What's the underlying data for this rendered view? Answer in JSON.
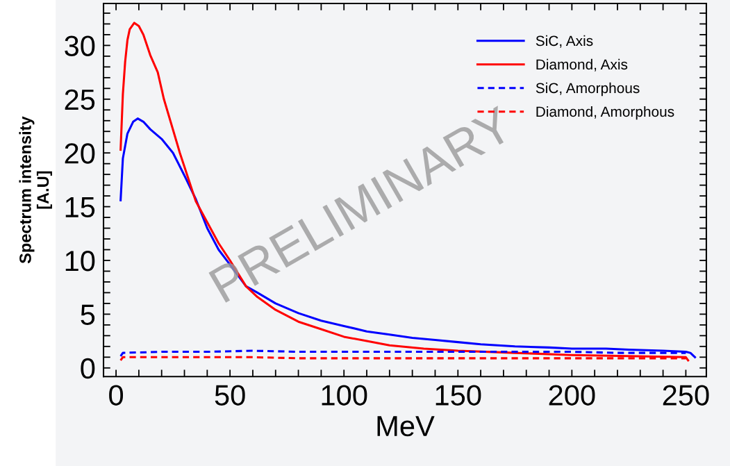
{
  "chart_data": {
    "type": "line",
    "xlabel": "MeV",
    "ylabel": "Spectrum intensity\n[A.U]",
    "xlim": [
      -5.5,
      259
    ],
    "ylim": [
      -0.8,
      33.9
    ],
    "xticks": [
      0,
      {
        "value": 10,
        "label": null
      },
      {
        "value": 20,
        "label": null
      },
      {
        "value": 30,
        "label": null
      },
      {
        "value": 40,
        "label": null
      },
      50,
      {
        "value": 60,
        "label": null
      },
      {
        "value": 70,
        "label": null
      },
      {
        "value": 80,
        "label": null
      },
      {
        "value": 90,
        "label": null
      },
      100,
      {
        "value": 110,
        "label": null
      },
      {
        "value": 120,
        "label": null
      },
      {
        "value": 130,
        "label": null
      },
      {
        "value": 140,
        "label": null
      },
      150,
      {
        "value": 160,
        "label": null
      },
      {
        "value": 170,
        "label": null
      },
      {
        "value": 180,
        "label": null
      },
      {
        "value": 190,
        "label": null
      },
      200,
      {
        "value": 210,
        "label": null
      },
      {
        "value": 220,
        "label": null
      },
      {
        "value": 230,
        "label": null
      },
      {
        "value": 240,
        "label": null
      },
      250
    ],
    "yticks": [
      0,
      {
        "value": 1,
        "label": null
      },
      {
        "value": 2,
        "label": null
      },
      {
        "value": 3,
        "label": null
      },
      {
        "value": 4,
        "label": null
      },
      5,
      {
        "value": 6,
        "label": null
      },
      {
        "value": 7,
        "label": null
      },
      {
        "value": 8,
        "label": null
      },
      {
        "value": 9,
        "label": null
      },
      10,
      {
        "value": 11,
        "label": null
      },
      {
        "value": 12,
        "label": null
      },
      {
        "value": 13,
        "label": null
      },
      {
        "value": 14,
        "label": null
      },
      15,
      {
        "value": 16,
        "label": null
      },
      {
        "value": 17,
        "label": null
      },
      {
        "value": 18,
        "label": null
      },
      {
        "value": 19,
        "label": null
      },
      20,
      {
        "value": 21,
        "label": null
      },
      {
        "value": 22,
        "label": null
      },
      {
        "value": 23,
        "label": null
      },
      {
        "value": 24,
        "label": null
      },
      25,
      {
        "value": 26,
        "label": null
      },
      {
        "value": 27,
        "label": null
      },
      {
        "value": 28,
        "label": null
      },
      {
        "value": 29,
        "label": null
      },
      30,
      {
        "value": 31,
        "label": null
      },
      {
        "value": 32,
        "label": null
      },
      {
        "value": 33,
        "label": null
      }
    ],
    "grid": false,
    "legend": "top right",
    "annotations": [
      "PRELIMINARY"
    ],
    "series": [
      {
        "name": "SiC, Axis",
        "color": "#0000ff",
        "line_style": "solid",
        "x": [
          2,
          3,
          5,
          7.5,
          9.5,
          12,
          15,
          20,
          25,
          30,
          35,
          40,
          45,
          50,
          57,
          62,
          70,
          80,
          90,
          100,
          110,
          120,
          130,
          140,
          150,
          160,
          175,
          190,
          200,
          215,
          225,
          240,
          250,
          252,
          254
        ],
        "values": [
          15.6,
          19.5,
          21.8,
          22.9,
          23.2,
          22.9,
          22.2,
          21.3,
          20.0,
          17.9,
          15.7,
          13.0,
          11.0,
          9.6,
          7.6,
          7.0,
          6.0,
          5.1,
          4.4,
          3.9,
          3.4,
          3.1,
          2.8,
          2.6,
          2.4,
          2.2,
          2.0,
          1.9,
          1.8,
          1.8,
          1.7,
          1.6,
          1.5,
          1.4,
          1.0
        ]
      },
      {
        "name": "Diamond, Axis",
        "color": "#ff0000",
        "line_style": "solid",
        "x": [
          2,
          3,
          4,
          5,
          6,
          8,
          10,
          12,
          15,
          18.3,
          21,
          28,
          35,
          45,
          50,
          57,
          62,
          70,
          80,
          90,
          100,
          110,
          120,
          135,
          150,
          175,
          200,
          225,
          250,
          251
        ],
        "values": [
          20.3,
          25.5,
          28.5,
          30.5,
          31.5,
          32.1,
          31.8,
          31.0,
          29.1,
          27.5,
          25.0,
          20.0,
          15.5,
          11.6,
          10.0,
          7.6,
          6.6,
          5.4,
          4.3,
          3.6,
          2.9,
          2.5,
          2.1,
          1.8,
          1.6,
          1.4,
          1.2,
          1.1,
          1.0,
          0.7
        ]
      },
      {
        "name": "SiC, Amorphous",
        "color": "#0000ff",
        "line_style": "dashed",
        "x": [
          2,
          3,
          20,
          40,
          60,
          80,
          100,
          120,
          140,
          160,
          180,
          200,
          220,
          240,
          250
        ],
        "values": [
          1.1,
          1.4,
          1.5,
          1.5,
          1.6,
          1.5,
          1.5,
          1.5,
          1.5,
          1.5,
          1.5,
          1.5,
          1.4,
          1.4,
          1.4
        ]
      },
      {
        "name": "Diamond, Amorphous",
        "color": "#ff0000",
        "line_style": "dashed",
        "x": [
          2,
          3,
          20,
          40,
          60,
          80,
          100,
          120,
          140,
          160,
          180,
          200,
          220,
          240,
          250
        ],
        "values": [
          0.7,
          1.0,
          1.0,
          1.0,
          1.0,
          0.9,
          0.9,
          0.9,
          0.9,
          0.9,
          0.9,
          0.9,
          0.9,
          0.9,
          0.9
        ]
      }
    ]
  }
}
